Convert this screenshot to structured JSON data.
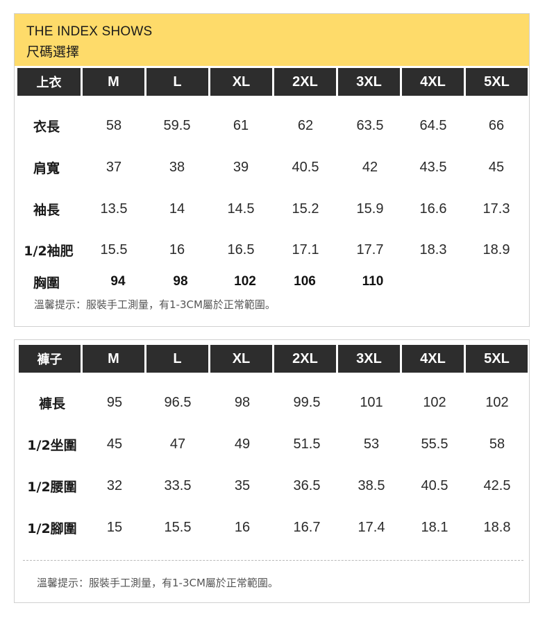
{
  "brand": "THE INDEX SHOWS",
  "subtitle": "尺碼選擇",
  "sizes": [
    "M",
    "L",
    "XL",
    "2XL",
    "3XL",
    "4XL",
    "5XL"
  ],
  "top_table": {
    "header": "上衣",
    "rows": [
      {
        "label": "衣長",
        "values": [
          "58",
          "59.5",
          "61",
          "62",
          "63.5",
          "64.5",
          "66"
        ]
      },
      {
        "label": "肩寬",
        "values": [
          "37",
          "38",
          "39",
          "40.5",
          "42",
          "43.5",
          "45"
        ]
      },
      {
        "label": "袖長",
        "values": [
          "13.5",
          "14",
          "14.5",
          "15.2",
          "15.9",
          "16.6",
          "17.3"
        ]
      },
      {
        "label": "1/2袖肥",
        "values": [
          "15.5",
          "16",
          "16.5",
          "17.1",
          "17.7",
          "18.3",
          "18.9"
        ]
      },
      {
        "label": "胸圍",
        "values": [
          "94",
          "98",
          "102",
          "106",
          "110",
          "",
          ""
        ]
      }
    ],
    "note": "溫馨提示：服裝手工測量，有1-3CM屬於正常範圍。"
  },
  "bottom_table": {
    "header": "褲子",
    "rows": [
      {
        "label": "褲長",
        "values": [
          "95",
          "96.5",
          "98",
          "99.5",
          "101",
          "102",
          "102"
        ]
      },
      {
        "label": "1/2坐圍",
        "values": [
          "45",
          "47",
          "49",
          "51.5",
          "53",
          "55.5",
          "58"
        ]
      },
      {
        "label": "1/2腰圍",
        "values": [
          "32",
          "33.5",
          "35",
          "36.5",
          "38.5",
          "40.5",
          "42.5"
        ]
      },
      {
        "label": "1/2腳圍",
        "values": [
          "15",
          "15.5",
          "16",
          "16.7",
          "17.4",
          "18.1",
          "18.8"
        ]
      }
    ],
    "note": "溫馨提示：服裝手工測量，有1-3CM屬於正常範圍。"
  },
  "colors": {
    "banner": "#fedb6a",
    "header_bg": "#2d2d2d"
  }
}
